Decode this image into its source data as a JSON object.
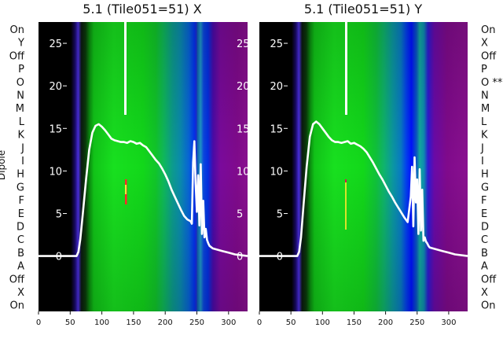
{
  "panels": [
    {
      "id": "x",
      "title": "5.1 (Tile051=51) X",
      "left_labels": [
        "On",
        "Y",
        "Off",
        "P",
        "O",
        "N",
        "M",
        "L",
        "K",
        "J",
        "I",
        "H",
        "G",
        "F",
        "E",
        "D",
        "C",
        "B",
        "A",
        "Off",
        "X",
        "On"
      ],
      "right_ticks": [
        "25",
        "20",
        "15",
        "10",
        "5",
        "0"
      ],
      "ylabel": "Dipole"
    },
    {
      "id": "y",
      "title": "5.1 (Tile051=51) Y",
      "left_labels": [],
      "right_ticks": [],
      "ylabel": ""
    }
  ],
  "right_labels": [
    "On",
    "X",
    "Off",
    "P",
    "O **",
    "N",
    "M",
    "L",
    "K",
    "J",
    "I",
    "H",
    "G",
    "F",
    "E",
    "D",
    "C",
    "B",
    "A",
    "Off",
    "X",
    "On"
  ],
  "x_ticks": [
    "0",
    "50",
    "100",
    "150",
    "200",
    "250",
    "300"
  ],
  "y_ticks": [
    "25",
    "20",
    "15",
    "10",
    "5",
    "0"
  ],
  "chart_data": [
    {
      "type": "line",
      "title": "5.1 (Tile051=51) X",
      "ylabel": "Dipole",
      "xlim": [
        0,
        330
      ],
      "ylim": [
        -6.5,
        27.5
      ],
      "series": [
        {
          "x": [
            0,
            60,
            63,
            66,
            70,
            75,
            80,
            85,
            90,
            95,
            100,
            105,
            110,
            115,
            120,
            125,
            130,
            135,
            140,
            145,
            150,
            155,
            160,
            165,
            170,
            175,
            180,
            185,
            190,
            195,
            200,
            205,
            210,
            215,
            220,
            225,
            230,
            235,
            240,
            242,
            244,
            246,
            248,
            250,
            252,
            254,
            256,
            258,
            260,
            262,
            264,
            266,
            268,
            270,
            275,
            280,
            290,
            300,
            310,
            330
          ],
          "y": [
            0,
            0,
            0.5,
            2,
            5,
            9,
            12.5,
            14.5,
            15.3,
            15.5,
            15.2,
            14.8,
            14.3,
            13.8,
            13.6,
            13.5,
            13.4,
            13.4,
            13.3,
            13.5,
            13.4,
            13.2,
            13.3,
            13,
            12.8,
            12.3,
            11.8,
            11.3,
            10.9,
            10.3,
            9.6,
            8.8,
            7.8,
            7,
            6.2,
            5.4,
            4.7,
            4.3,
            4.1,
            3.8,
            11,
            13.5,
            8.5,
            5.2,
            9.5,
            3.6,
            10.8,
            2.6,
            6.5,
            2.2,
            3.2,
            1.9,
            1.5,
            1.2,
            0.9,
            0.8,
            0.6,
            0.4,
            0.2,
            0
          ]
        }
      ]
    },
    {
      "type": "line",
      "title": "5.1 (Tile051=51) Y",
      "ylabel": "",
      "xlim": [
        0,
        330
      ],
      "ylim": [
        -6.5,
        27.5
      ],
      "series": [
        {
          "x": [
            0,
            60,
            63,
            66,
            70,
            75,
            80,
            85,
            90,
            95,
            100,
            105,
            110,
            115,
            120,
            125,
            130,
            135,
            140,
            145,
            150,
            155,
            160,
            165,
            170,
            175,
            180,
            185,
            190,
            195,
            200,
            205,
            210,
            215,
            220,
            225,
            230,
            235,
            240,
            242,
            244,
            246,
            248,
            250,
            252,
            254,
            256,
            258,
            260,
            262,
            264,
            266,
            268,
            270,
            275,
            280,
            290,
            300,
            310,
            330
          ],
          "y": [
            0,
            0,
            0.5,
            2.2,
            6,
            10.5,
            14,
            15.5,
            15.8,
            15.5,
            15,
            14.5,
            14,
            13.6,
            13.4,
            13.4,
            13.3,
            13.4,
            13.5,
            13.2,
            13.3,
            13.1,
            12.9,
            12.6,
            12.2,
            11.6,
            11,
            10.3,
            9.6,
            9,
            8.3,
            7.6,
            7,
            6.3,
            5.7,
            5.1,
            4.5,
            4,
            7,
            10.5,
            3.5,
            11.6,
            6.3,
            9,
            2.6,
            10.2,
            3,
            7.8,
            1.8,
            2.2,
            1.7,
            1.5,
            1.2,
            1,
            0.9,
            0.8,
            0.6,
            0.4,
            0.2,
            0
          ]
        }
      ]
    }
  ]
}
